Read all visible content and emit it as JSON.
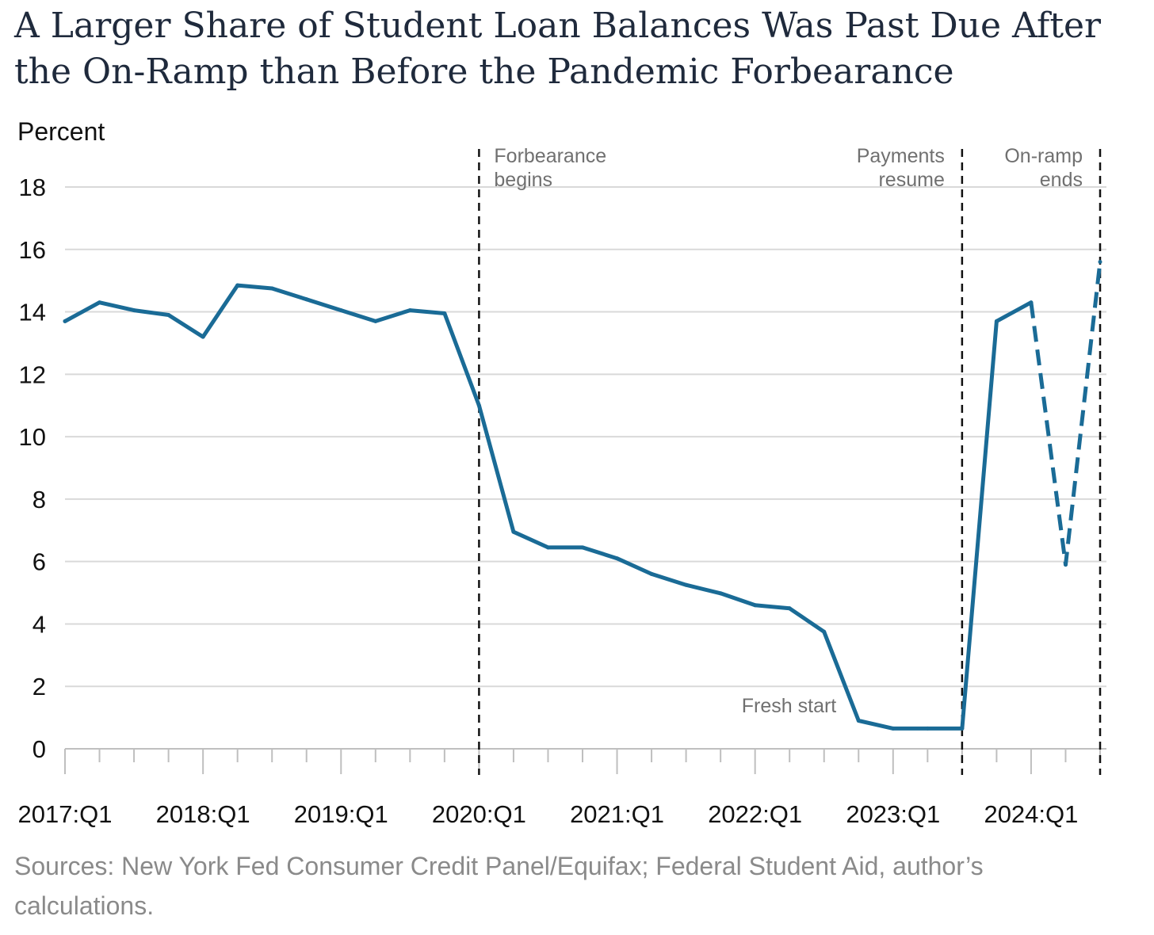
{
  "title": "A Larger Share of Student Loan Balances Was Past Due After the On-Ramp than Before the Pandemic Forbearance",
  "source": "Sources: New York Fed Consumer Credit Panel/Equifax; Federal Student Aid, author’s calculations.",
  "colors": {
    "line": "#1a6b96",
    "grid": "#d9d9d9",
    "axis": "#bfbfbf",
    "annotation": "#707070"
  },
  "chart_data": {
    "type": "line",
    "ylabel": "Percent",
    "ylim": [
      0,
      18
    ],
    "yticks": [
      0,
      2,
      4,
      6,
      8,
      10,
      12,
      14,
      16,
      18
    ],
    "grid": true,
    "categories": [
      "2017:Q1",
      "2017:Q2",
      "2017:Q3",
      "2017:Q4",
      "2018:Q1",
      "2018:Q2",
      "2018:Q3",
      "2018:Q4",
      "2019:Q1",
      "2019:Q2",
      "2019:Q3",
      "2019:Q4",
      "2020:Q1",
      "2020:Q2",
      "2020:Q3",
      "2020:Q4",
      "2021:Q1",
      "2021:Q2",
      "2021:Q3",
      "2021:Q4",
      "2022:Q1",
      "2022:Q2",
      "2022:Q3",
      "2022:Q4",
      "2023:Q1",
      "2023:Q2",
      "2023:Q3",
      "2023:Q4",
      "2024:Q1",
      "2024:Q2",
      "2024:Q3"
    ],
    "xtick_labels": [
      "2017:Q1",
      "2018:Q1",
      "2019:Q1",
      "2020:Q1",
      "2021:Q1",
      "2022:Q1",
      "2023:Q1",
      "2024:Q1"
    ],
    "series": [
      {
        "values": [
          13.7,
          14.3,
          14.05,
          13.9,
          13.2,
          14.85,
          14.75,
          14.4,
          14.05,
          13.7,
          14.05,
          13.95,
          11.0,
          6.95,
          6.45,
          6.45,
          6.1,
          5.6,
          5.25,
          4.98,
          4.6,
          4.5,
          3.75,
          0.9,
          0.65,
          0.65,
          0.65,
          13.7,
          14.3,
          5.9,
          15.6
        ],
        "dashed_from_index": 28
      }
    ],
    "markers": [
      {
        "label_lines": [
          "Forbearance",
          "begins"
        ],
        "x": "2020:Q1",
        "align": "left"
      },
      {
        "label_lines": [
          "Payments",
          "resume"
        ],
        "x": "2023:Q3",
        "align": "right"
      },
      {
        "label_lines": [
          "On-ramp",
          "ends"
        ],
        "x": "2024:Q3",
        "align": "right"
      }
    ],
    "annotations": [
      {
        "text": "Fresh start",
        "x": "2022:Q4",
        "y": 1.6
      }
    ]
  }
}
